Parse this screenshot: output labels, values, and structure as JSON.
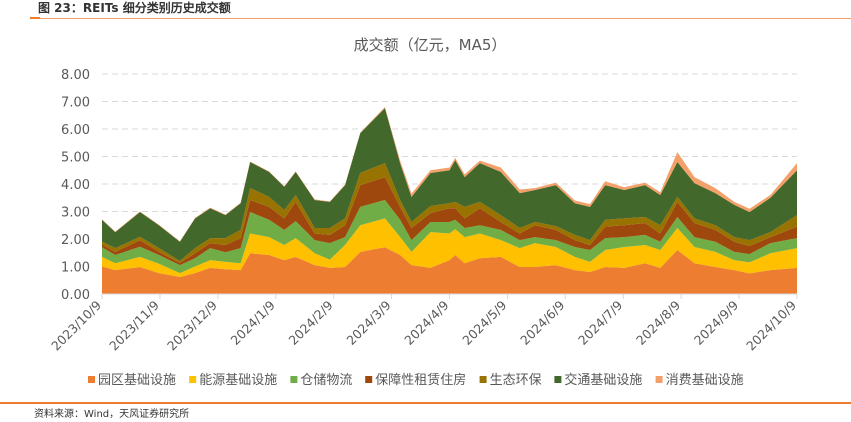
{
  "figure_title": "图 23：REITs 细分类别历史成交额",
  "source": "资料来源：Wind，天风证券研究所",
  "chart_data": {
    "type": "area",
    "stacked": true,
    "title": "成交额（亿元，MA5）",
    "xlabel": "",
    "ylabel": "",
    "ylim": [
      0,
      8
    ],
    "yticks": [
      "0.00",
      "1.00",
      "2.00",
      "3.00",
      "4.00",
      "5.00",
      "6.00",
      "7.00",
      "8.00"
    ],
    "xticks": [
      "2023/10/9",
      "2023/11/9",
      "2023/12/9",
      "2024/1/9",
      "2024/2/9",
      "2024/3/9",
      "2024/4/9",
      "2024/5/9",
      "2024/6/9",
      "2024/7/9",
      "2024/8/9",
      "2024/9/9",
      "2024/10/9"
    ],
    "grid": true,
    "legend_position": "bottom",
    "x": [
      "2023-10-09",
      "2023-10-16",
      "2023-10-29",
      "2023-11-08",
      "2023-11-19",
      "2023-11-27",
      "2023-12-05",
      "2023-12-13",
      "2023-12-21",
      "2023-12-26",
      "2024-01-05",
      "2024-01-13",
      "2024-01-19",
      "2024-01-29",
      "2024-02-06",
      "2024-02-14",
      "2024-02-22",
      "2024-03-06",
      "2024-03-14",
      "2024-03-20",
      "2024-03-30",
      "2024-04-09",
      "2024-04-12",
      "2024-04-17",
      "2024-04-25",
      "2024-05-06",
      "2024-05-16",
      "2024-05-24",
      "2024-06-04",
      "2024-06-14",
      "2024-06-22",
      "2024-06-30",
      "2024-07-10",
      "2024-07-21",
      "2024-07-29",
      "2024-08-07",
      "2024-08-16",
      "2024-08-27",
      "2024-09-06",
      "2024-09-14",
      "2024-09-25",
      "2024-10-09"
    ],
    "series": [
      {
        "name": "园区基础设施",
        "color": "#ED7D31",
        "values": [
          1.0,
          0.87,
          0.98,
          0.76,
          0.62,
          0.76,
          0.95,
          0.9,
          0.87,
          1.48,
          1.42,
          1.23,
          1.35,
          1.05,
          0.95,
          0.98,
          1.53,
          1.7,
          1.42,
          1.05,
          0.95,
          1.23,
          1.42,
          1.12,
          1.3,
          1.35,
          0.98,
          0.98,
          1.05,
          0.87,
          0.8,
          0.98,
          0.95,
          1.12,
          0.95,
          1.6,
          1.12,
          0.98,
          0.87,
          0.75,
          0.87,
          0.95
        ]
      },
      {
        "name": "能源基础设施",
        "color": "#FFC000",
        "values": [
          0.35,
          0.25,
          0.37,
          0.34,
          0.14,
          0.24,
          0.28,
          0.27,
          0.25,
          0.72,
          0.65,
          0.55,
          0.68,
          0.43,
          0.3,
          0.8,
          0.97,
          1.05,
          0.65,
          0.48,
          1.3,
          0.97,
          0.94,
          0.95,
          0.9,
          0.61,
          0.69,
          0.87,
          0.66,
          0.48,
          0.37,
          0.62,
          0.76,
          0.66,
          0.65,
          0.8,
          0.59,
          0.55,
          0.36,
          0.4,
          0.61,
          0.72
        ]
      },
      {
        "name": "仓储物流",
        "color": "#70AD47",
        "values": [
          0.35,
          0.3,
          0.37,
          0.32,
          0.29,
          0.3,
          0.44,
          0.35,
          0.55,
          0.78,
          0.63,
          0.55,
          0.62,
          0.48,
          0.6,
          0.29,
          0.67,
          0.67,
          0.63,
          0.43,
          0.37,
          0.42,
          0.34,
          0.33,
          0.3,
          0.37,
          0.29,
          0.22,
          0.25,
          0.36,
          0.43,
          0.43,
          0.36,
          0.37,
          0.3,
          0.4,
          0.36,
          0.37,
          0.3,
          0.3,
          0.37,
          0.36
        ]
      },
      {
        "name": "保障性租赁住房",
        "color": "#9E480E",
        "values": [
          0.1,
          0.11,
          0.24,
          0.11,
          0.08,
          0.18,
          0.18,
          0.26,
          0.36,
          0.44,
          0.47,
          0.42,
          0.7,
          0.24,
          0.3,
          0.43,
          0.79,
          0.83,
          0.47,
          0.44,
          0.32,
          0.5,
          0.42,
          0.35,
          0.62,
          0.29,
          0.24,
          0.43,
          0.37,
          0.25,
          0.18,
          0.42,
          0.43,
          0.43,
          0.3,
          0.55,
          0.51,
          0.43,
          0.37,
          0.3,
          0.22,
          0.42
        ]
      },
      {
        "name": "生态环保",
        "color": "#997300",
        "values": [
          0.1,
          0.14,
          0.12,
          0.14,
          0.07,
          0.19,
          0.18,
          0.25,
          0.3,
          0.43,
          0.36,
          0.3,
          0.25,
          0.2,
          0.25,
          0.25,
          0.44,
          0.51,
          0.25,
          0.22,
          0.26,
          0.18,
          0.23,
          0.42,
          0.23,
          0.25,
          0.2,
          0.12,
          0.14,
          0.19,
          0.18,
          0.25,
          0.25,
          0.22,
          0.3,
          0.18,
          0.17,
          0.17,
          0.17,
          0.21,
          0.18,
          0.42
        ]
      },
      {
        "name": "交通基础设施",
        "color": "#43682B",
        "values": [
          0.8,
          0.58,
          0.9,
          0.83,
          0.7,
          1.08,
          1.09,
          0.84,
          0.97,
          0.95,
          0.91,
          0.85,
          0.84,
          1.02,
          0.95,
          1.21,
          1.45,
          2.0,
          1.34,
          0.91,
          1.2,
          1.2,
          1.52,
          1.08,
          1.41,
          1.57,
          1.27,
          1.16,
          1.49,
          1.15,
          1.21,
          1.26,
          1.03,
          1.16,
          1.1,
          1.27,
          1.28,
          1.17,
          1.17,
          1.02,
          1.25,
          1.63
        ]
      },
      {
        "name": "消费基础设施",
        "color": "#F4A06A",
        "values": [
          0.02,
          0.02,
          0.02,
          0.02,
          0.02,
          0.02,
          0.02,
          0.02,
          0.02,
          0.02,
          0.02,
          0.02,
          0.02,
          0.02,
          0.02,
          0.02,
          0.02,
          0.04,
          0.09,
          0.12,
          0.1,
          0.1,
          0.08,
          0.1,
          0.09,
          0.16,
          0.13,
          0.07,
          0.09,
          0.1,
          0.1,
          0.14,
          0.1,
          0.09,
          0.1,
          0.36,
          0.22,
          0.18,
          0.11,
          0.12,
          0.1,
          0.26
        ]
      }
    ]
  }
}
